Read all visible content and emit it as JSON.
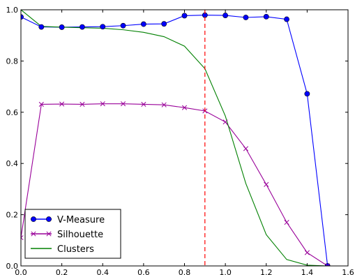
{
  "chart_data": {
    "type": "line",
    "title": "",
    "xlabel": "",
    "ylabel": "",
    "xlim": [
      0,
      1.6
    ],
    "ylim": [
      0,
      1.0
    ],
    "xticks": [
      0.0,
      0.2,
      0.4,
      0.6,
      0.8,
      1.0,
      1.2,
      1.4,
      1.6
    ],
    "yticks": [
      0.0,
      0.2,
      0.4,
      0.6,
      0.8,
      1.0
    ],
    "xtick_labels": [
      "0.0",
      "0.2",
      "0.4",
      "0.6",
      "0.8",
      "1.0",
      "1.2",
      "1.4",
      "1.6"
    ],
    "ytick_labels": [
      "0.0",
      "0.2",
      "0.4",
      "0.6",
      "0.8",
      "1.0"
    ],
    "grid": false,
    "legend_position": "bottom-left",
    "x": [
      0.0,
      0.1,
      0.2,
      0.3,
      0.4,
      0.5,
      0.6,
      0.7,
      0.8,
      0.9,
      1.0,
      1.1,
      1.2,
      1.3,
      1.4,
      1.5
    ],
    "series": [
      {
        "name": "V-Measure",
        "color": "#0000ff",
        "marker": "circle",
        "values": [
          0.972,
          0.933,
          0.932,
          0.933,
          0.934,
          0.938,
          0.944,
          0.945,
          0.977,
          0.979,
          0.978,
          0.97,
          0.973,
          0.963,
          0.672,
          0.0
        ]
      },
      {
        "name": "Silhouette",
        "color": "#990099",
        "marker": "x",
        "values": [
          0.11,
          0.631,
          0.632,
          0.631,
          0.633,
          0.633,
          0.631,
          0.629,
          0.618,
          0.605,
          0.562,
          0.458,
          0.318,
          0.17,
          0.052,
          0.0
        ]
      },
      {
        "name": "Clusters",
        "color": "#008000",
        "marker": "none",
        "values": [
          1.0,
          0.935,
          0.932,
          0.93,
          0.928,
          0.922,
          0.912,
          0.895,
          0.858,
          0.77,
          0.585,
          0.322,
          0.122,
          0.025,
          0.003,
          0.0
        ]
      }
    ],
    "annotations": [
      {
        "type": "vline",
        "x": 0.9,
        "color": "#ff0000",
        "style": "dashed"
      }
    ]
  }
}
